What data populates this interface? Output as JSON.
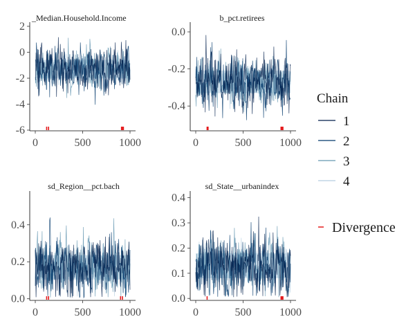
{
  "chart_data": {
    "type": "line",
    "title": "",
    "x_range": [
      0,
      1000
    ],
    "x_ticks": [
      "0",
      "500",
      "1000"
    ],
    "grid": false,
    "legend": {
      "title": "Chain",
      "placement": "right",
      "entries": [
        "1",
        "2",
        "3",
        "4"
      ],
      "divergence_label": "Divergence"
    },
    "colors": {
      "chain_1": "#011f4b",
      "chain_2": "#03396c",
      "chain_3": "#6497b1",
      "chain_4": "#b3cde0",
      "divergence": "#e41a1c",
      "band": "#d1e1ec"
    },
    "panels": [
      {
        "title": "b_Median.Household.Income",
        "title_visible": "_Median.Household.Income",
        "ylim": [
          -6,
          2
        ],
        "y_ticks": [
          "-6",
          "-4",
          "-2",
          "0",
          "2"
        ],
        "y_tick_values": [
          -6,
          -4,
          -2,
          0,
          2
        ],
        "center": -1.3,
        "spread": 1.3,
        "divergences": [
          120,
          140,
          910,
          920,
          930
        ]
      },
      {
        "title": "b_pct.retirees",
        "ylim": [
          -0.53,
          0.03
        ],
        "y_ticks": [
          "-0.4",
          "-0.2",
          "0.0"
        ],
        "y_tick_values": [
          -0.4,
          -0.2,
          0.0
        ],
        "center": -0.27,
        "spread": 0.11,
        "divergences": [
          120,
          130,
          900,
          910,
          920
        ]
      },
      {
        "title": "sd_Region__pct.bach",
        "ylim": [
          -0.005,
          0.56
        ],
        "y_ticks": [
          "0.0",
          "0.2",
          "0.4"
        ],
        "y_tick_values": [
          0.0,
          0.2,
          0.4
        ],
        "center": 0.17,
        "spread": 0.12,
        "divergences": [
          120,
          140,
          900,
          920
        ]
      },
      {
        "title": "sd_State__urbanindex",
        "ylim": [
          -0.005,
          0.41
        ],
        "y_ticks": [
          "0.0",
          "0.1",
          "0.2",
          "0.3",
          "0.4"
        ],
        "y_tick_values": [
          0.0,
          0.1,
          0.2,
          0.3,
          0.4
        ],
        "center": 0.13,
        "spread": 0.09,
        "divergences": [
          120,
          900,
          910,
          920
        ]
      }
    ]
  }
}
